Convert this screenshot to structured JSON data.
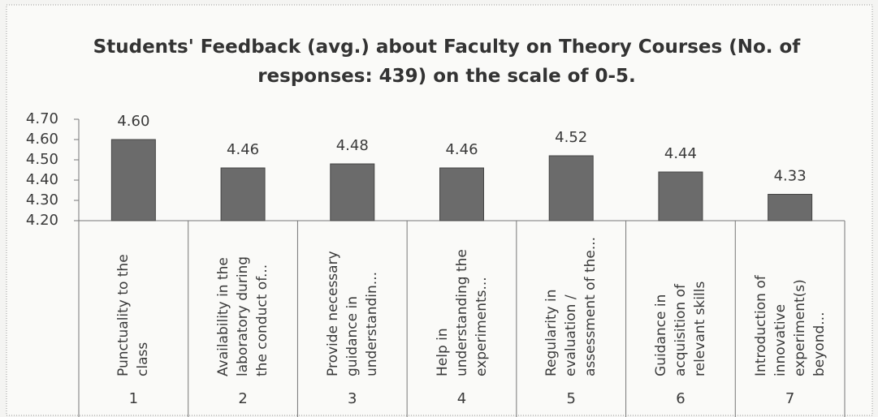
{
  "chart_data": {
    "type": "bar",
    "title": "Students' Feedback (avg.) about Faculty on Theory Courses  (No. of responses: 439) on the scale of 0-5.",
    "categories": [
      "Punctuality to the class",
      "Availability in the laboratory during the conduct of...",
      "Provide necessary guidance in understandin...",
      "Help in understanding the experiments...",
      "Regularity in evaluation / assessment of the...",
      "Guidance in acquisition of relevant skills",
      "Introduction of innovative experiment(s) beyond..."
    ],
    "category_numbers": [
      1,
      2,
      3,
      4,
      5,
      6,
      7
    ],
    "values": [
      4.6,
      4.46,
      4.48,
      4.46,
      4.52,
      4.44,
      4.33
    ],
    "value_labels": [
      "4.60",
      "4.46",
      "4.48",
      "4.46",
      "4.52",
      "4.44",
      "4.33"
    ],
    "color": "#6b6b6b",
    "ylim": [
      4.2,
      4.7
    ],
    "yticks": [
      {
        "value": 4.2,
        "label": "4.20"
      },
      {
        "value": 4.3,
        "label": "4.30"
      },
      {
        "value": 4.4,
        "label": "4.40"
      },
      {
        "value": 4.5,
        "label": "4.50"
      },
      {
        "value": 4.6,
        "label": "4.60"
      },
      {
        "value": 4.7,
        "label": "4.70"
      }
    ],
    "grid": false
  }
}
